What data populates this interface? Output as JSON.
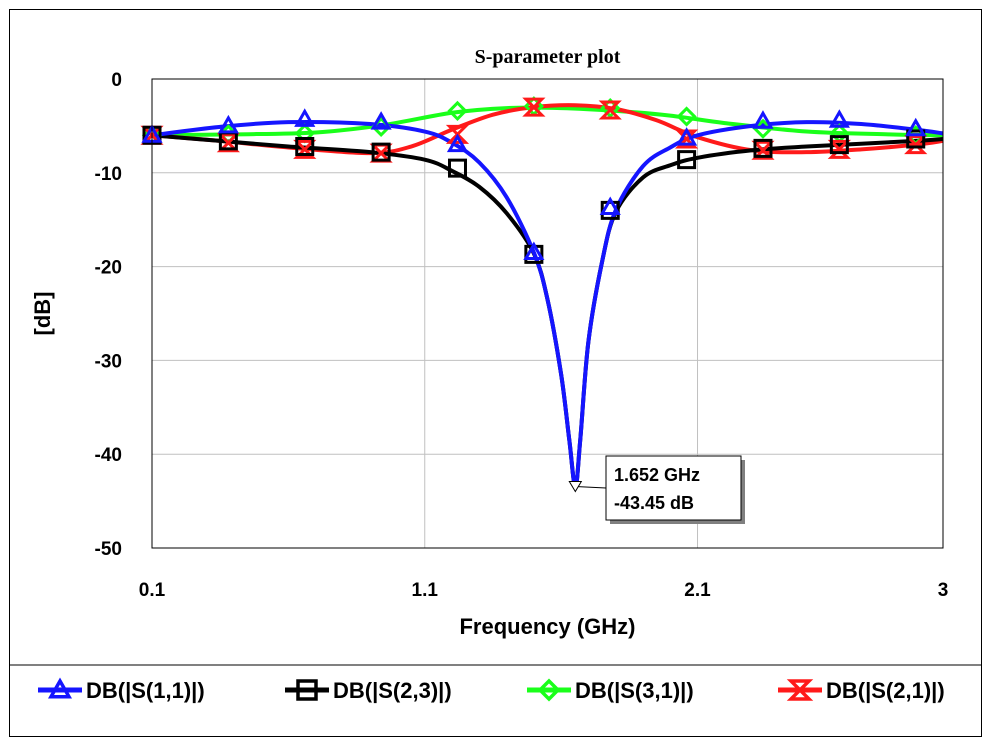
{
  "chart_data": {
    "type": "line",
    "title": "S-parameter plot",
    "xlabel": "Frequency (GHz)",
    "ylabel": "[dB]",
    "xlim": [
      0.1,
      3
    ],
    "ylim": [
      -50,
      0
    ],
    "x_ticks": [
      0.1,
      1.1,
      2.1,
      3
    ],
    "x_tick_labels": [
      "0.1",
      "1.1",
      "2.1",
      "3"
    ],
    "y_ticks": [
      0,
      -10,
      -20,
      -30,
      -40,
      -50
    ],
    "y_tick_labels": [
      "0",
      "-10",
      "-20",
      "-30",
      "-40",
      "-50"
    ],
    "grid": true,
    "legend_position": "bottom",
    "series": [
      {
        "name": "DB(|S(1,1)|)",
        "color": "#1515ff",
        "marker": "triangle",
        "x": [
          0.1,
          0.35,
          0.6,
          0.9,
          1.1,
          1.2,
          1.3,
          1.4,
          1.5,
          1.55,
          1.6,
          1.63,
          1.652,
          1.67,
          1.7,
          1.75,
          1.8,
          1.9,
          2.0,
          2.1,
          2.3,
          2.5,
          2.7,
          2.9,
          3.0
        ],
        "y": [
          -6,
          -5.1,
          -4.6,
          -4.8,
          -5.6,
          -6.8,
          -8.9,
          -12.6,
          -18.5,
          -23.5,
          -31.5,
          -38.5,
          -43.45,
          -38.5,
          -28,
          -19.5,
          -14,
          -9.3,
          -7.3,
          -6,
          -5,
          -4.6,
          -4.8,
          -5.4,
          -5.8
        ],
        "marker_x": [
          0.1,
          0.38,
          0.66,
          0.94,
          1.22,
          1.5,
          1.78,
          2.06,
          2.34,
          2.62,
          2.9
        ],
        "marker_y": [
          -6,
          -5,
          -4.3,
          -4.6,
          -7,
          -18.5,
          -13.7,
          -6.3,
          -4.5,
          -4.4,
          -5.3
        ]
      },
      {
        "name": "DB(|S(2,3)|)",
        "color": "#000000",
        "marker": "square",
        "x": [
          0.1,
          0.35,
          0.6,
          0.9,
          1.1,
          1.2,
          1.3,
          1.4,
          1.5,
          1.55,
          1.6,
          1.63,
          1.652,
          1.67,
          1.7,
          1.75,
          1.8,
          1.9,
          2.0,
          2.1,
          2.3,
          2.5,
          2.7,
          2.9,
          3.0
        ],
        "y": [
          -6,
          -6.6,
          -7.2,
          -7.8,
          -8.6,
          -9.8,
          -11.5,
          -14.3,
          -18.6,
          -23.5,
          -31.5,
          -38.5,
          -43.45,
          -38.5,
          -28,
          -19.5,
          -14.2,
          -10.5,
          -9.2,
          -8.4,
          -7.6,
          -7.2,
          -6.9,
          -6.6,
          -6.4
        ],
        "marker_x": [
          0.1,
          0.38,
          0.66,
          0.94,
          1.22,
          1.5,
          1.78,
          2.06,
          2.34,
          2.62,
          2.9
        ],
        "marker_y": [
          -6,
          -6.6,
          -7.2,
          -7.8,
          -9.5,
          -18.7,
          -14,
          -8.6,
          -7.4,
          -7,
          -6.4
        ]
      },
      {
        "name": "DB(|S(3,1)|)",
        "color": "#1aff1a",
        "marker": "diamond",
        "x": [
          0.1,
          0.4,
          0.7,
          0.95,
          1.2,
          1.4,
          1.6,
          1.8,
          2.0,
          2.2,
          2.5,
          2.8,
          3.0
        ],
        "y": [
          -6,
          -5.9,
          -5.7,
          -4.9,
          -3.6,
          -3.1,
          -3.1,
          -3.4,
          -3.9,
          -4.7,
          -5.6,
          -5.9,
          -6
        ],
        "marker_x": [
          0.1,
          0.38,
          0.66,
          0.94,
          1.22,
          1.5,
          1.78,
          2.06,
          2.34,
          2.62,
          2.9
        ],
        "marker_y": [
          -6,
          -5.9,
          -5.8,
          -5.1,
          -3.4,
          -2.9,
          -3.1,
          -4,
          -5.3,
          -5.8,
          -6
        ]
      },
      {
        "name": "DB(|S(2,1)|)",
        "color": "#ff1a1a",
        "marker": "hourglass",
        "x": [
          0.1,
          0.35,
          0.6,
          0.9,
          1.05,
          1.2,
          1.35,
          1.5,
          1.652,
          1.8,
          1.95,
          2.1,
          2.3,
          2.5,
          2.7,
          2.9,
          3.0
        ],
        "y": [
          -6,
          -6.6,
          -7.3,
          -7.9,
          -7.2,
          -5.4,
          -3.8,
          -3,
          -2.8,
          -3.2,
          -4.4,
          -6.2,
          -7.6,
          -7.8,
          -7.5,
          -7,
          -6.6
        ],
        "marker_x": [
          0.1,
          0.38,
          0.66,
          0.94,
          1.22,
          1.5,
          1.78,
          2.06,
          2.34,
          2.62,
          2.9
        ],
        "marker_y": [
          -6,
          -6.8,
          -7.5,
          -7.9,
          -5.9,
          -3,
          -3.3,
          -6.4,
          -7.6,
          -7.5,
          -7
        ]
      }
    ],
    "annotation": {
      "x": 1.652,
      "y": -43.45,
      "line1": "1.652 GHz",
      "line2": "-43.45 dB"
    }
  }
}
